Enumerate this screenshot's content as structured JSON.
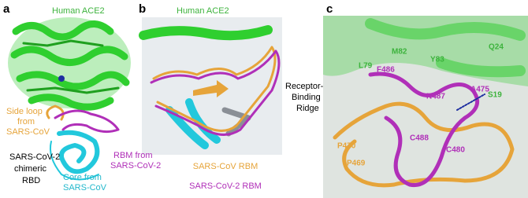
{
  "panel_a": {
    "letter": "a",
    "receptor_label": "Human ACE2",
    "side_loop_label": [
      "Side loop",
      "from",
      "SARS-CoV"
    ],
    "rbm_label": [
      "RBM from",
      "SARS-CoV-2"
    ],
    "chimera_label": [
      "SARS-CoV-2",
      "chimeric",
      "RBD"
    ],
    "core_label": [
      "Core from",
      "SARS-CoV"
    ]
  },
  "panel_b": {
    "letter": "b",
    "receptor_label": "Human ACE2",
    "ridge_label": [
      "Receptor-",
      "Binding",
      "Ridge"
    ],
    "legend": [
      "SARS-CoV RBM",
      "SARS-CoV-2 RBM"
    ]
  },
  "panel_c": {
    "letter": "c",
    "residues": [
      "M82",
      "Y83",
      "Q24",
      "L79",
      "F486",
      "A475",
      "S19",
      "N487",
      "C488",
      "C480",
      "P470",
      "P469"
    ]
  }
}
